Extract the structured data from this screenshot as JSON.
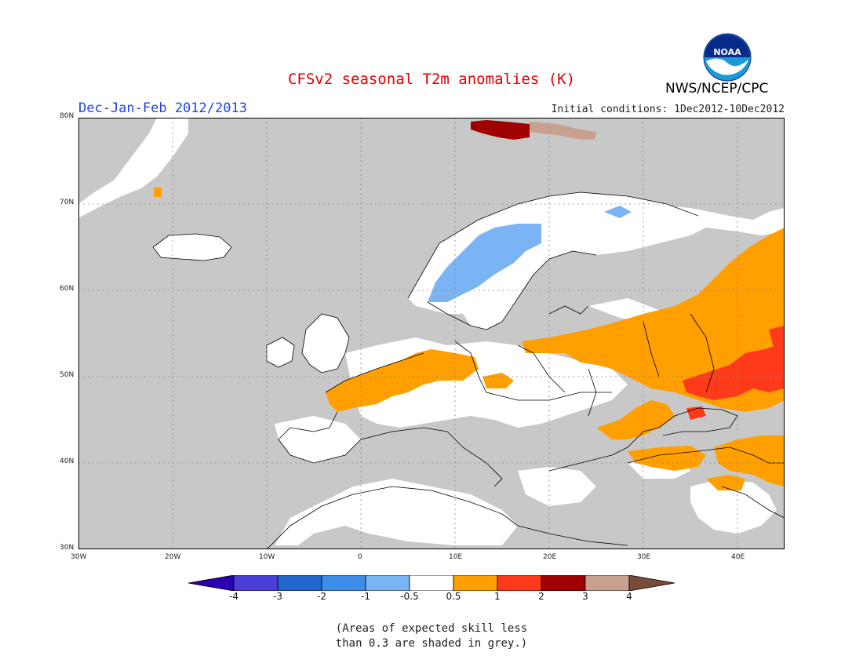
{
  "header": {
    "title": "CFSv2 seasonal T2m anomalies (K)",
    "subtitle": "Dec-Jan-Feb 2012/2013",
    "initial_conditions": "Initial conditions: 1Dec2012-10Dec2012",
    "agency": "NWS/NCEP/CPC",
    "logo_text": "NOAA"
  },
  "map": {
    "region": "Europe",
    "lat_range": [
      30,
      80
    ],
    "lon_range": [
      -30,
      45
    ],
    "lat_ticks": [
      "30N",
      "40N",
      "50N",
      "60N",
      "70N",
      "80N"
    ],
    "lon_ticks": [
      "30W",
      "20W",
      "10W",
      "0",
      "10E",
      "20E",
      "30E",
      "40E"
    ],
    "colors": {
      "ocean": "#c8c8c8",
      "land_low_skill": "#c8c8c8",
      "neutral": "#ffffff",
      "pos_0_5_1": "#ffa000",
      "pos_1_2": "#ff3a1a",
      "pos_2_3": "#a00000",
      "pos_3_4": "#c8a090",
      "neg_0_5_1": "#7ab4f5"
    }
  },
  "colorbar": {
    "labels": [
      "-4",
      "-3",
      "-2",
      "-1",
      "-0.5",
      "0.5",
      "1",
      "2",
      "3",
      "4"
    ],
    "colors": [
      "#2a00b0",
      "#4b3fd6",
      "#2266cc",
      "#3c8de8",
      "#7ab4f5",
      "#ffffff",
      "#ffa000",
      "#ff3a1a",
      "#a00000",
      "#c8a090",
      "#7a4a3a"
    ]
  },
  "note": {
    "line1": "(Areas of expected skill less",
    "line2": "than 0.3 are shaded in grey.)"
  }
}
